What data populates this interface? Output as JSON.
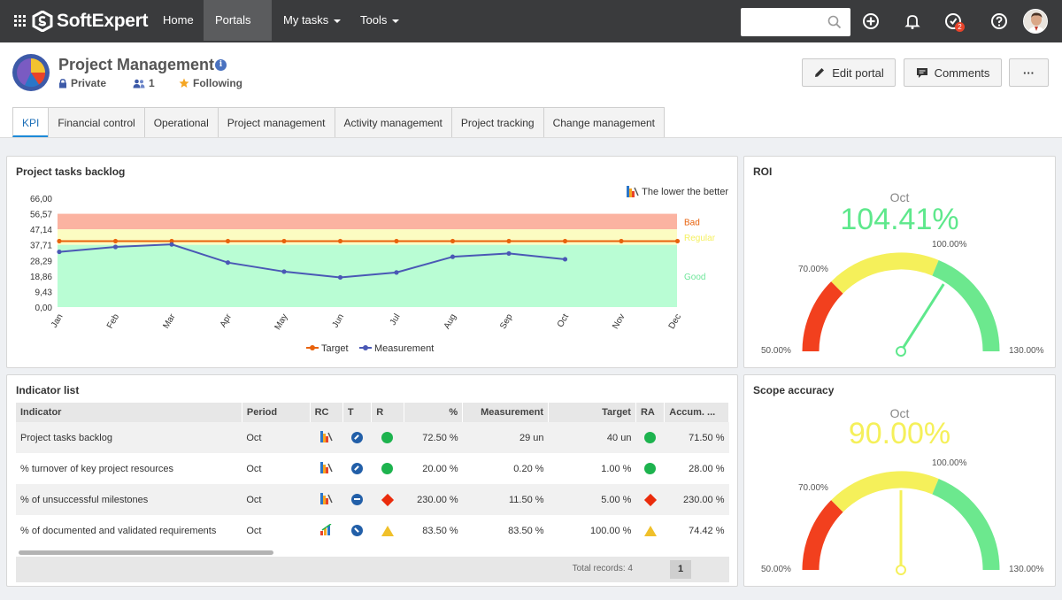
{
  "topbar": {
    "brand": "SoftExpert",
    "nav": [
      {
        "label": "Home",
        "active": false
      },
      {
        "label": "Portals",
        "active": true
      },
      {
        "label": "My tasks",
        "active": false
      },
      {
        "label": "Tools",
        "active": false
      }
    ],
    "search_placeholder": "",
    "notification_badge": "2"
  },
  "header": {
    "title": "Project Management",
    "privacy": "Private",
    "members": "1",
    "following": "Following",
    "edit_label": "Edit portal",
    "comments_label": "Comments",
    "more_label": "···"
  },
  "tabs": [
    "KPI",
    "Financial control",
    "Operational",
    "Project management",
    "Activity management",
    "Project tracking",
    "Change management"
  ],
  "backlog": {
    "title": "Project tasks backlog",
    "note": "The lower the better",
    "chart_data": {
      "type": "line",
      "categories": [
        "Jan",
        "Feb",
        "Mar",
        "Apr",
        "May",
        "Jun",
        "Jul",
        "Aug",
        "Sep",
        "Oct",
        "Nov",
        "Dec"
      ],
      "yticks": [
        "66,00",
        "56,57",
        "47,14",
        "37,71",
        "28,29",
        "18,86",
        "9,43",
        "0,00"
      ],
      "ylim": [
        0,
        66
      ],
      "bands": [
        {
          "label": "Bad",
          "from": 47.14,
          "to": 56.57,
          "color": "#fbb3a1",
          "label_color": "#e8620c"
        },
        {
          "label": "Regular",
          "from": 37.71,
          "to": 47.14,
          "color": "#fcfcc2",
          "label_color": "#f5f060"
        },
        {
          "label": "Good",
          "from": 0,
          "to": 37.71,
          "color": "#b9fdd4",
          "label_color": "#6ee69a"
        }
      ],
      "series": [
        {
          "name": "Target",
          "color": "#e8620c",
          "values": [
            40,
            40,
            40,
            40,
            40,
            40,
            40,
            40,
            40,
            40,
            40,
            40
          ]
        },
        {
          "name": "Measurement",
          "color": "#4a58b5",
          "values": [
            33.5,
            36.5,
            38,
            27,
            21.5,
            18,
            21,
            30.5,
            32.5,
            29,
            null,
            null
          ]
        }
      ]
    }
  },
  "roi": {
    "title": "ROI",
    "month": "Oct",
    "value": "104.41%",
    "value_color": "#5ee88c",
    "label_min": "50.00%",
    "label_low": "70.00%",
    "label_high": "100.00%",
    "label_max": "130.00%",
    "gauge": {
      "min": 50,
      "max": 130,
      "value": 104.41
    }
  },
  "scope": {
    "title": "Scope accuracy",
    "month": "Oct",
    "value": "90.00%",
    "value_color": "#f5f05a",
    "label_min": "50.00%",
    "label_low": "70.00%",
    "label_high": "100.00%",
    "label_max": "130.00%",
    "gauge": {
      "min": 50,
      "max": 130,
      "value": 90
    }
  },
  "indicators": {
    "title": "Indicator list",
    "columns": [
      "Indicator",
      "Period",
      "RC",
      "T",
      "R",
      "%",
      "Measurement",
      "Target",
      "RA",
      "Accum. ..."
    ],
    "rows": [
      {
        "indicator": "Project tasks backlog",
        "period": "Oct",
        "trend": "up",
        "result": "green",
        "pct": "72.50 %",
        "measurement": "29 un",
        "target": "40 un",
        "ra": "green",
        "accum": "71.50 %"
      },
      {
        "indicator": "% turnover of key project resources",
        "period": "Oct",
        "trend": "up",
        "result": "green",
        "pct": "20.00 %",
        "measurement": "0.20 %",
        "target": "1.00 %",
        "ra": "green",
        "accum": "28.00 %"
      },
      {
        "indicator": "% of unsuccessful milestones",
        "period": "Oct",
        "trend": "flat",
        "result": "red",
        "pct": "230.00 %",
        "measurement": "11.50 %",
        "target": "5.00 %",
        "ra": "red",
        "accum": "230.00 %"
      },
      {
        "indicator": "% of documented and validated requirements",
        "period": "Oct",
        "trend": "down",
        "result": "yellow",
        "pct": "83.50 %",
        "measurement": "83.50 %",
        "target": "100.00 %",
        "ra": "yellow",
        "accum": "74.42 %"
      }
    ],
    "total_label": "Total records: 4",
    "page": "1"
  }
}
